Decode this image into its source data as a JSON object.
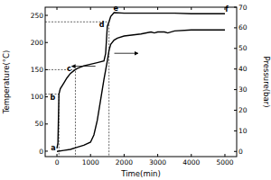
{
  "chart_data": {
    "type": "line",
    "x_label": "Time(min)",
    "y_label": "Temperature(°C)",
    "y2_label": "Pressure(bar)",
    "xlim": [
      -350,
      5350
    ],
    "xticks": [
      0,
      1000,
      2000,
      3000,
      4000,
      5000
    ],
    "ylim": [
      -10,
      265
    ],
    "yticks": [
      0,
      50,
      100,
      150,
      200,
      250
    ],
    "y2lim": [
      -2.5,
      70
    ],
    "y2ticks": [
      0,
      10,
      20,
      30,
      40,
      50,
      60,
      70
    ],
    "grid": false,
    "series": [
      {
        "color": "#000000",
        "axis": "y",
        "x": [
          0,
          30,
          60,
          100,
          200,
          300,
          400,
          500,
          600,
          800,
          1000,
          1200,
          1400,
          1450,
          1500,
          1550,
          1600,
          1700,
          2000,
          2500,
          3000,
          3500,
          4000,
          4500,
          5000
        ],
        "values": [
          5,
          15,
          105,
          115,
          125,
          135,
          143,
          148,
          152,
          157,
          160,
          163,
          166,
          180,
          230,
          238,
          248,
          255,
          254,
          254,
          254,
          254,
          253,
          253,
          253
        ]
      },
      {
        "color": "#000000",
        "axis": "y2",
        "x": [
          0,
          200,
          400,
          600,
          800,
          1000,
          1100,
          1200,
          1300,
          1400,
          1500,
          1550,
          1600,
          1700,
          1800,
          2000,
          2500,
          2800,
          2900,
          3000,
          3200,
          3300,
          3500,
          4000,
          5000
        ],
        "values": [
          0,
          0.5,
          1,
          2,
          3,
          4.5,
          8,
          15,
          25,
          35,
          44,
          49,
          52,
          54,
          55,
          56,
          57,
          58,
          57.5,
          58,
          58,
          57.5,
          58.5,
          59,
          59
        ]
      }
    ],
    "annotations": [
      {
        "text": "a",
        "x": 0,
        "y": 5
      },
      {
        "text": "b",
        "x": 60,
        "y": 105
      },
      {
        "text": "c",
        "x": 550,
        "y": 150
      },
      {
        "text": "d",
        "x": 1550,
        "y": 238
      },
      {
        "text": "e",
        "x": 1700,
        "y": 255
      },
      {
        "text": "f",
        "x": 5000,
        "y": 253
      }
    ]
  }
}
